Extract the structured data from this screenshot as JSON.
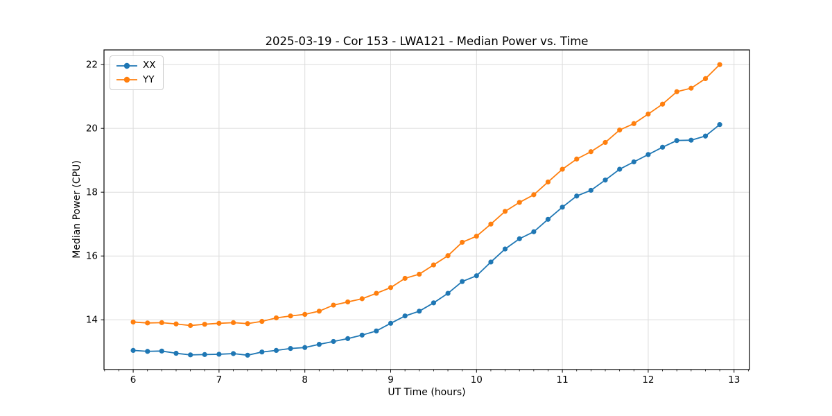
{
  "chart_data": {
    "type": "line",
    "title": "2025-03-19 - Cor 153 - LWA121 - Median Power vs. Time",
    "xlabel": "UT Time (hours)",
    "ylabel": "Median Power (CPU)",
    "xlim": [
      5.66,
      13.18
    ],
    "ylim": [
      12.44,
      22.46
    ],
    "x_ticks": [
      6,
      7,
      8,
      9,
      10,
      11,
      12,
      13
    ],
    "y_ticks": [
      14,
      16,
      18,
      20,
      22
    ],
    "x_minor_tick_step_hours": 0.1667,
    "grid": true,
    "grid_color": "#dcdcdc",
    "axis_color": "#000000",
    "legend_position": "upper left",
    "x": [
      6.0,
      6.167,
      6.333,
      6.5,
      6.667,
      6.833,
      7.0,
      7.167,
      7.333,
      7.5,
      7.667,
      7.833,
      8.0,
      8.167,
      8.333,
      8.5,
      8.667,
      8.833,
      9.0,
      9.167,
      9.333,
      9.5,
      9.667,
      9.833,
      10.0,
      10.167,
      10.333,
      10.5,
      10.667,
      10.833,
      11.0,
      11.167,
      11.333,
      11.5,
      11.667,
      11.833,
      12.0,
      12.167,
      12.333,
      12.5,
      12.667,
      12.833
    ],
    "series": [
      {
        "name": "XX",
        "color": "#1f77b4",
        "marker": "circle",
        "values": [
          13.04,
          13.01,
          13.02,
          12.95,
          12.9,
          12.91,
          12.92,
          12.94,
          12.89,
          12.99,
          13.04,
          13.1,
          13.13,
          13.23,
          13.32,
          13.41,
          13.52,
          13.65,
          13.89,
          14.12,
          14.27,
          14.53,
          14.83,
          15.2,
          15.38,
          15.81,
          16.22,
          16.54,
          16.76,
          17.15,
          17.53,
          17.88,
          18.06,
          18.38,
          18.72,
          18.95,
          19.18,
          19.41,
          19.62,
          19.63,
          19.76,
          20.12
        ]
      },
      {
        "name": "YY",
        "color": "#ff7f0e",
        "marker": "circle",
        "values": [
          13.93,
          13.9,
          13.91,
          13.87,
          13.82,
          13.86,
          13.89,
          13.91,
          13.88,
          13.95,
          14.06,
          14.12,
          14.17,
          14.27,
          14.46,
          14.56,
          14.66,
          14.83,
          15.01,
          15.3,
          15.43,
          15.72,
          16.01,
          16.43,
          16.62,
          17.0,
          17.4,
          17.68,
          17.92,
          18.32,
          18.72,
          19.04,
          19.27,
          19.56,
          19.95,
          20.15,
          20.45,
          20.76,
          21.15,
          21.26,
          21.56,
          22.0
        ]
      }
    ]
  }
}
